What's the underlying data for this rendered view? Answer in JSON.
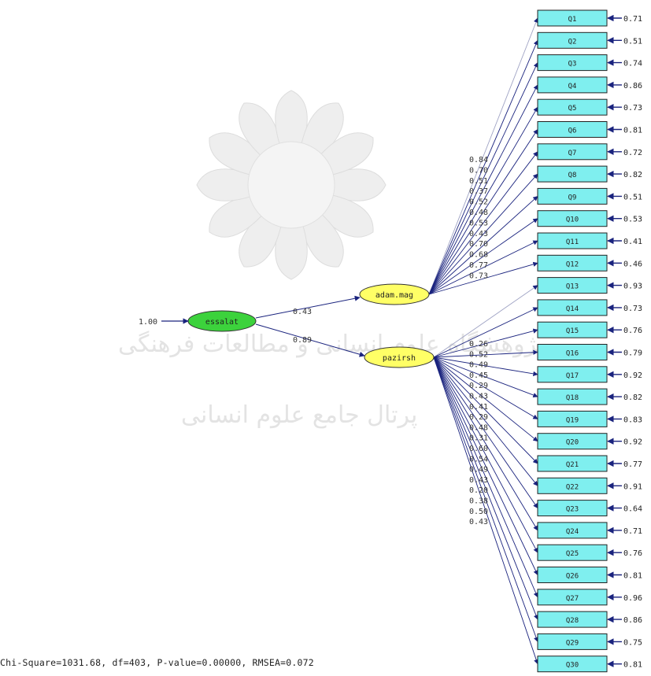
{
  "latent": {
    "essalat": {
      "label": "essalat",
      "variance": "1.00"
    },
    "adam": {
      "label": "adam.mag"
    },
    "pazirsh": {
      "label": "pazirsh"
    }
  },
  "structural_paths": [
    {
      "from": "essalat",
      "to": "adam.mag",
      "value": "0.43"
    },
    {
      "from": "essalat",
      "to": "pazirsh",
      "value": "0.89"
    }
  ],
  "indicators": [
    {
      "name": "Q1",
      "error": "0.71"
    },
    {
      "name": "Q2",
      "error": "0.51"
    },
    {
      "name": "Q3",
      "error": "0.74"
    },
    {
      "name": "Q4",
      "error": "0.86"
    },
    {
      "name": "Q5",
      "error": "0.73"
    },
    {
      "name": "Q6",
      "error": "0.81"
    },
    {
      "name": "Q7",
      "error": "0.72"
    },
    {
      "name": "Q8",
      "error": "0.82"
    },
    {
      "name": "Q9",
      "error": "0.51"
    },
    {
      "name": "Q10",
      "error": "0.53"
    },
    {
      "name": "Q11",
      "error": "0.41"
    },
    {
      "name": "Q12",
      "error": "0.46"
    },
    {
      "name": "Q13",
      "error": "0.93"
    },
    {
      "name": "Q14",
      "error": "0.73"
    },
    {
      "name": "Q15",
      "error": "0.76"
    },
    {
      "name": "Q16",
      "error": "0.79"
    },
    {
      "name": "Q17",
      "error": "0.92"
    },
    {
      "name": "Q18",
      "error": "0.82"
    },
    {
      "name": "Q19",
      "error": "0.83"
    },
    {
      "name": "Q20",
      "error": "0.92"
    },
    {
      "name": "Q21",
      "error": "0.77"
    },
    {
      "name": "Q22",
      "error": "0.91"
    },
    {
      "name": "Q23",
      "error": "0.64"
    },
    {
      "name": "Q24",
      "error": "0.71"
    },
    {
      "name": "Q25",
      "error": "0.76"
    },
    {
      "name": "Q26",
      "error": "0.81"
    },
    {
      "name": "Q27",
      "error": "0.96"
    },
    {
      "name": "Q28",
      "error": "0.86"
    },
    {
      "name": "Q29",
      "error": "0.75"
    },
    {
      "name": "Q30",
      "error": "0.81"
    }
  ],
  "loadings_adam": [
    "0.84",
    "0.70",
    "0.51",
    "0.37",
    "0.52",
    "0.48",
    "0.53",
    "0.43",
    "0.70",
    "0.68",
    "0.77",
    "0.73"
  ],
  "loadings_pazirsh": [
    "0.26",
    "0.52",
    "0.49",
    "0.45",
    "0.29",
    "0.43",
    "0.41",
    "0.29",
    "0.48",
    "0.31",
    "0.60",
    "0.54",
    "0.49",
    "0.43",
    "0.20",
    "0.38",
    "0.50",
    "0.43"
  ],
  "watermark": {
    "line1": "پژوهشگاه علوم انسانی و مطالعات فرهنگی",
    "line2": "پرتال جامع علوم انسانی"
  },
  "footer": {
    "stats": "Chi-Square=1031.68, df=403, P-value=0.00000, RMSEA=0.072"
  },
  "colors": {
    "indicator_fill": "#7fefef",
    "exogenous_fill": "#3cd23c",
    "endogenous_fill": "#ffff66",
    "path": "#1a237e"
  }
}
